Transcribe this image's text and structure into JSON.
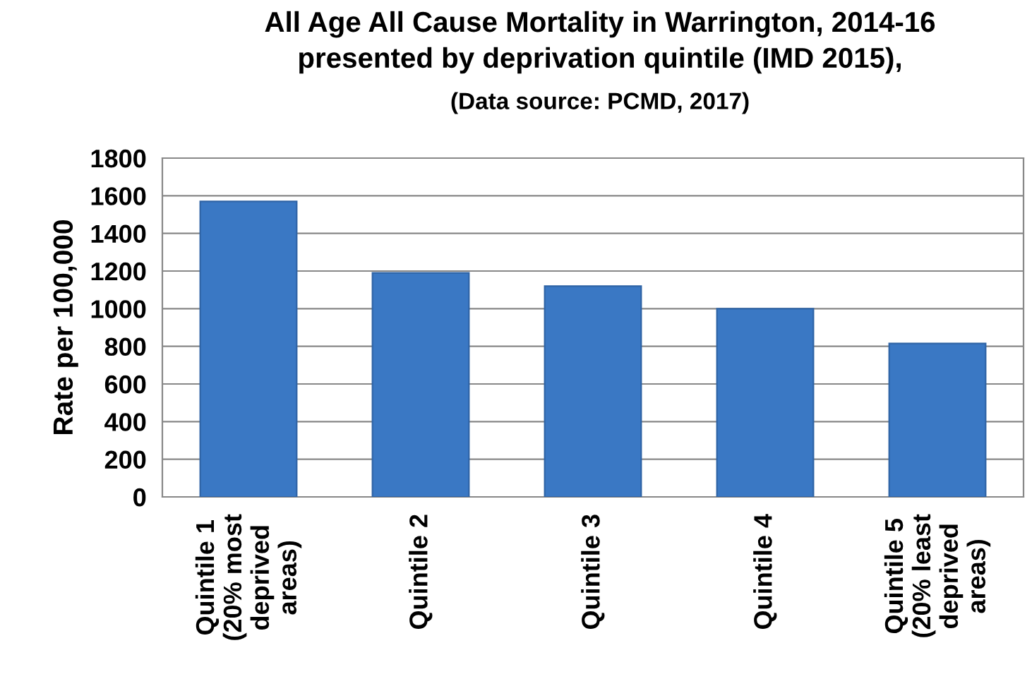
{
  "chart_data": {
    "type": "bar",
    "title": "All Age All Cause Mortality in Warrington, 2014-16\npresented by deprivation quintile (IMD 2015),",
    "subtitle": "(Data source: PCMD, 2017)",
    "ylabel": "Rate per 100,000",
    "categories": [
      "Quintile 1\n(20% most\ndeprived\nareas)",
      "Quintile 2",
      "Quintile 3",
      "Quintile 4",
      "Quintile 5\n(20% least\ndeprived\nareas)"
    ],
    "values": [
      1570,
      1190,
      1120,
      1000,
      815
    ],
    "color": "#3a78c4",
    "ylim": [
      0,
      1800
    ],
    "yticks": [
      0,
      200,
      400,
      600,
      800,
      1000,
      1200,
      1400,
      1600,
      1800
    ],
    "grid": "y"
  }
}
